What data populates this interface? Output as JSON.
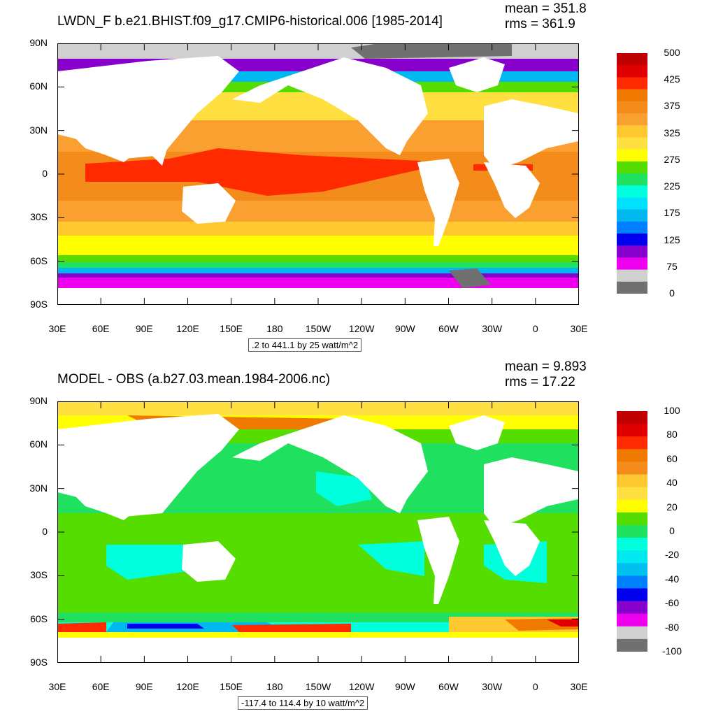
{
  "panels": [
    {
      "title": "LWDN_F b.e21.BHIST.f09_g17.CMIP6-historical.006 [1985-2014]",
      "mean": "mean = 351.8",
      "rms": "rms = 361.9",
      "range_text": ".2 to 441.1 by 25 watt/m^2",
      "colorbar": {
        "colors": [
          "#c00000",
          "#e00000",
          "#ff2a00",
          "#f07a00",
          "#f48c1c",
          "#f9a030",
          "#ffc830",
          "#ffe040",
          "#ffff00",
          "#55dd00",
          "#20e060",
          "#00ffdd",
          "#00e0ff",
          "#00b8f0",
          "#0080ff",
          "#0000ee",
          "#8800cc",
          "#ee00ee",
          "#d0d0d0",
          "#707070"
        ],
        "labels": [
          "500",
          "425",
          "375",
          "325",
          "275",
          "225",
          "175",
          "125",
          "75",
          "0"
        ]
      }
    },
    {
      "title": "MODEL - OBS (a.b27.03.mean.1984-2006.nc)",
      "mean": "mean = 9.893",
      "rms": "rms = 17.22",
      "range_text": "-117.4 to 114.4 by 10 watt/m^2",
      "colorbar": {
        "colors": [
          "#c00000",
          "#e00000",
          "#ff2a00",
          "#f07a00",
          "#f48c1c",
          "#ffc830",
          "#ffe040",
          "#ffff00",
          "#55dd00",
          "#20e060",
          "#00ffdd",
          "#00e8f0",
          "#00c0f0",
          "#0080ff",
          "#0000ee",
          "#8800cc",
          "#ee00ee",
          "#d0d0d0",
          "#707070"
        ],
        "labels": [
          "100",
          "80",
          "60",
          "40",
          "20",
          "0",
          "-20",
          "-40",
          "-60",
          "-80",
          "-100"
        ]
      }
    }
  ],
  "axes": {
    "lat_labels": [
      "90N",
      "60N",
      "30N",
      "0",
      "30S",
      "60S",
      "90S"
    ],
    "lon_labels": [
      "30E",
      "60E",
      "90E",
      "120E",
      "150E",
      "180",
      "150W",
      "120W",
      "90W",
      "60W",
      "30W",
      "0",
      "30E"
    ]
  },
  "land_color": "#ffffff"
}
